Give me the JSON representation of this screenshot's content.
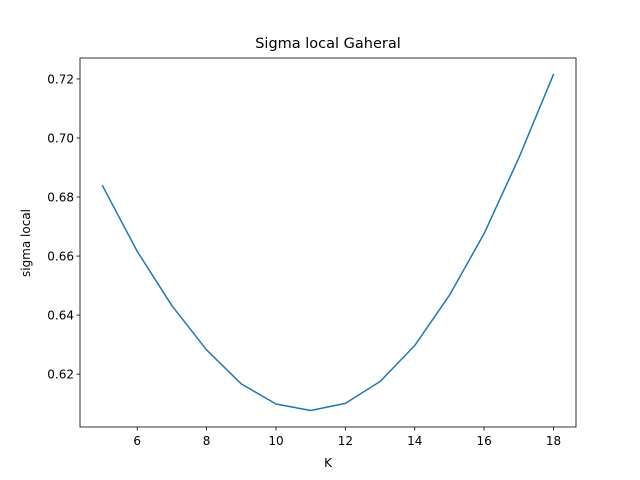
{
  "chart_data": {
    "type": "line",
    "title": "Sigma local Gaheral",
    "xlabel": "K",
    "ylabel": "sigma local",
    "xlim": [
      4.35,
      18.65
    ],
    "ylim": [
      0.6021,
      0.7271
    ],
    "xticks": [
      6,
      8,
      10,
      12,
      14,
      16,
      18
    ],
    "xtick_labels": [
      "6",
      "8",
      "10",
      "12",
      "14",
      "16",
      "18"
    ],
    "yticks": [
      0.62,
      0.64,
      0.66,
      0.68,
      0.7,
      0.72
    ],
    "ytick_labels": [
      "0.62",
      "0.64",
      "0.66",
      "0.68",
      "0.70",
      "0.72"
    ],
    "grid": false,
    "series": [
      {
        "color": "#1f77b4",
        "x": [
          5,
          6,
          7,
          8,
          9,
          10,
          11,
          12,
          13,
          14,
          15,
          16,
          17,
          18
        ],
        "y": [
          0.6838,
          0.6616,
          0.6432,
          0.6282,
          0.6167,
          0.6099,
          0.6077,
          0.6101,
          0.6175,
          0.6297,
          0.6467,
          0.6676,
          0.6932,
          0.7215
        ]
      }
    ]
  }
}
